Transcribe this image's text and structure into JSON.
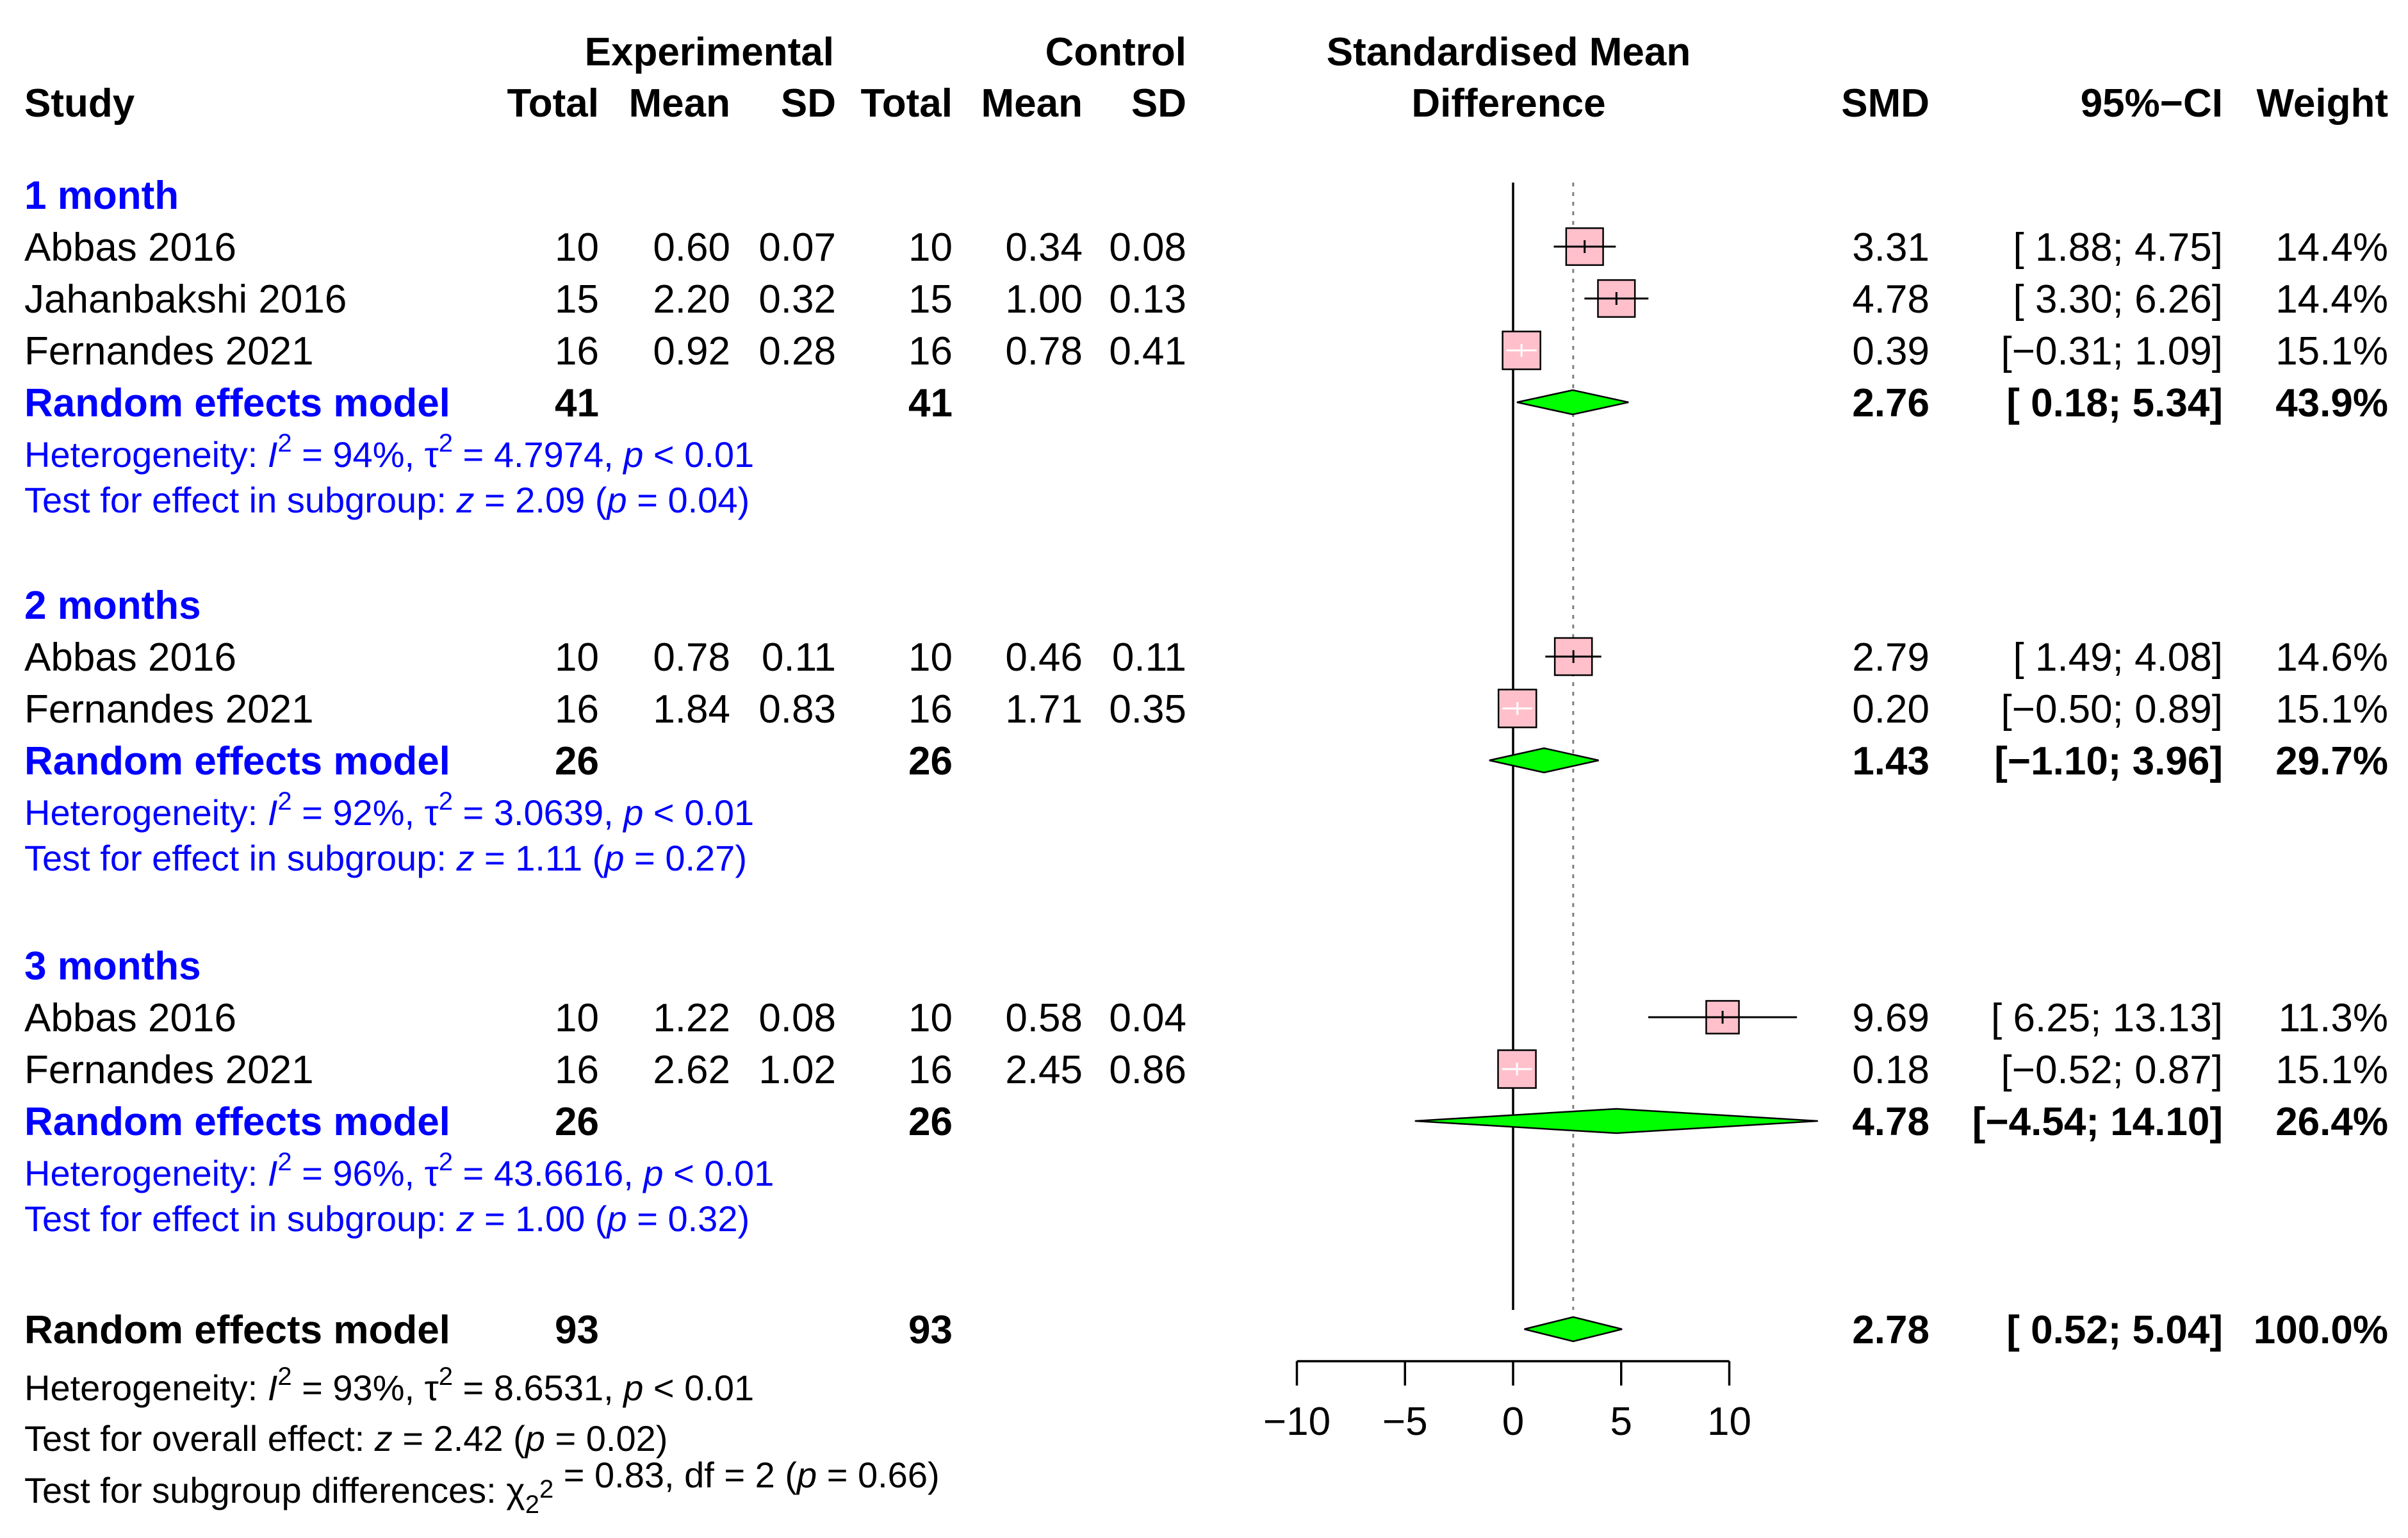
{
  "chart_data": {
    "type": "forest",
    "measure": "Standardised Mean Difference",
    "headers": {
      "study": "Study",
      "experimental": "Experimental",
      "control": "Control",
      "total": "Total",
      "mean": "Mean",
      "sd": "SD",
      "smd_header_line1": "Standardised Mean",
      "smd_header_line2": "Difference",
      "smd": "SMD",
      "ci": "95%−CI",
      "weight": "Weight"
    },
    "subgroups": [
      {
        "label": "1 month",
        "studies": [
          {
            "name": "Abbas 2016",
            "exp_total": "10",
            "exp_mean": "0.60",
            "exp_sd": "0.07",
            "ctrl_total": "10",
            "ctrl_mean": "0.34",
            "ctrl_sd": "0.08",
            "smd": 3.31,
            "lower": 1.88,
            "upper": 4.75,
            "smd_text": "3.31",
            "ci_text": "[ 1.88;  4.75]",
            "weight_text": "14.4%",
            "weight": 14.4
          },
          {
            "name": "Jahanbakshi 2016",
            "exp_total": "15",
            "exp_mean": "2.20",
            "exp_sd": "0.32",
            "ctrl_total": "15",
            "ctrl_mean": "1.00",
            "ctrl_sd": "0.13",
            "smd": 4.78,
            "lower": 3.3,
            "upper": 6.26,
            "smd_text": "4.78",
            "ci_text": "[ 3.30;  6.26]",
            "weight_text": "14.4%",
            "weight": 14.4
          },
          {
            "name": "Fernandes 2021",
            "exp_total": "16",
            "exp_mean": "0.92",
            "exp_sd": "0.28",
            "ctrl_total": "16",
            "ctrl_mean": "0.78",
            "ctrl_sd": "0.41",
            "smd": 0.39,
            "lower": -0.31,
            "upper": 1.09,
            "smd_text": "0.39",
            "ci_text": "[−0.31;  1.09]",
            "weight_text": "15.1%",
            "weight": 15.1
          }
        ],
        "model": {
          "label": "Random effects model",
          "exp_total": "41",
          "ctrl_total": "41",
          "smd": 2.76,
          "lower": 0.18,
          "upper": 5.34,
          "smd_text": "2.76",
          "ci_text": "[ 0.18;  5.34]",
          "weight_text": "43.9%"
        },
        "heterogeneity": {
          "prefix": "Heterogeneity: ",
          "i2": "= 94%, ",
          "tau2": " = 4.7974, ",
          "p": " < 0.01"
        },
        "test": {
          "prefix": "Test for effect in subgroup: ",
          "z": " = 2.09 (",
          "p": " = 0.04)"
        }
      },
      {
        "label": "2 months",
        "studies": [
          {
            "name": "Abbas 2016",
            "exp_total": "10",
            "exp_mean": "0.78",
            "exp_sd": "0.11",
            "ctrl_total": "10",
            "ctrl_mean": "0.46",
            "ctrl_sd": "0.11",
            "smd": 2.79,
            "lower": 1.49,
            "upper": 4.08,
            "smd_text": "2.79",
            "ci_text": "[ 1.49;  4.08]",
            "weight_text": "14.6%",
            "weight": 14.6
          },
          {
            "name": "Fernandes 2021",
            "exp_total": "16",
            "exp_mean": "1.84",
            "exp_sd": "0.83",
            "ctrl_total": "16",
            "ctrl_mean": "1.71",
            "ctrl_sd": "0.35",
            "smd": 0.2,
            "lower": -0.5,
            "upper": 0.89,
            "smd_text": "0.20",
            "ci_text": "[−0.50;  0.89]",
            "weight_text": "15.1%",
            "weight": 15.1
          }
        ],
        "model": {
          "label": "Random effects model",
          "exp_total": "26",
          "ctrl_total": "26",
          "smd": 1.43,
          "lower": -1.1,
          "upper": 3.96,
          "smd_text": "1.43",
          "ci_text": "[−1.10;  3.96]",
          "weight_text": "29.7%"
        },
        "heterogeneity": {
          "prefix": "Heterogeneity: ",
          "i2": "= 92%, ",
          "tau2": " = 3.0639, ",
          "p": " < 0.01"
        },
        "test": {
          "prefix": "Test for effect in subgroup: ",
          "z": " = 1.11 (",
          "p": " = 0.27)"
        }
      },
      {
        "label": "3 months",
        "studies": [
          {
            "name": "Abbas 2016",
            "exp_total": "10",
            "exp_mean": "1.22",
            "exp_sd": "0.08",
            "ctrl_total": "10",
            "ctrl_mean": "0.58",
            "ctrl_sd": "0.04",
            "smd": 9.69,
            "lower": 6.25,
            "upper": 13.13,
            "smd_text": "9.69",
            "ci_text": "[ 6.25; 13.13]",
            "weight_text": "11.3%",
            "weight": 11.3
          },
          {
            "name": "Fernandes 2021",
            "exp_total": "16",
            "exp_mean": "2.62",
            "exp_sd": "1.02",
            "ctrl_total": "16",
            "ctrl_mean": "2.45",
            "ctrl_sd": "0.86",
            "smd": 0.18,
            "lower": -0.52,
            "upper": 0.87,
            "smd_text": "0.18",
            "ci_text": "[−0.52;  0.87]",
            "weight_text": "15.1%",
            "weight": 15.1
          }
        ],
        "model": {
          "label": "Random effects model",
          "exp_total": "26",
          "ctrl_total": "26",
          "smd": 4.78,
          "lower": -4.54,
          "upper": 14.1,
          "smd_text": "4.78",
          "ci_text": "[−4.54; 14.10]",
          "weight_text": "26.4%"
        },
        "heterogeneity": {
          "prefix": "Heterogeneity: ",
          "i2": "= 96%, ",
          "tau2": " = 43.6616, ",
          "p": " < 0.01"
        },
        "test": {
          "prefix": "Test for effect in subgroup: ",
          "z": " = 1.00 (",
          "p": " = 0.32)"
        }
      }
    ],
    "overall": {
      "label": "Random effects model",
      "exp_total": "93",
      "ctrl_total": "93",
      "smd": 2.78,
      "lower": 0.52,
      "upper": 5.04,
      "smd_text": "2.78",
      "ci_text": "[ 0.52;  5.04]",
      "weight_text": "100.0%",
      "heterogeneity": {
        "prefix": "Heterogeneity: ",
        "i2": "= 93%, ",
        "tau2": " = 8.6531, ",
        "p": " < 0.01"
      },
      "test": {
        "prefix": "Test for overall effect: ",
        "z": " = 2.42 (",
        "p": " = 0.02)"
      },
      "subgroup_diff": {
        "prefix": "Test for subgroup differences: ",
        "chi_value": " = 0.83, df = 2 (",
        "p": " = 0.66)"
      }
    },
    "xaxis": {
      "min": -10,
      "max": 10,
      "ticks": [
        -10,
        -5,
        0,
        5,
        10
      ],
      "tick_labels": [
        "−10",
        "−5",
        "0",
        "5",
        "10"
      ]
    },
    "colors": {
      "box_fill": "#ffc0cb",
      "diamond_fill": "#00ff00",
      "subgroup_text": "#0000ff",
      "ref_line": "#000000",
      "overall_line": "#808080"
    }
  }
}
